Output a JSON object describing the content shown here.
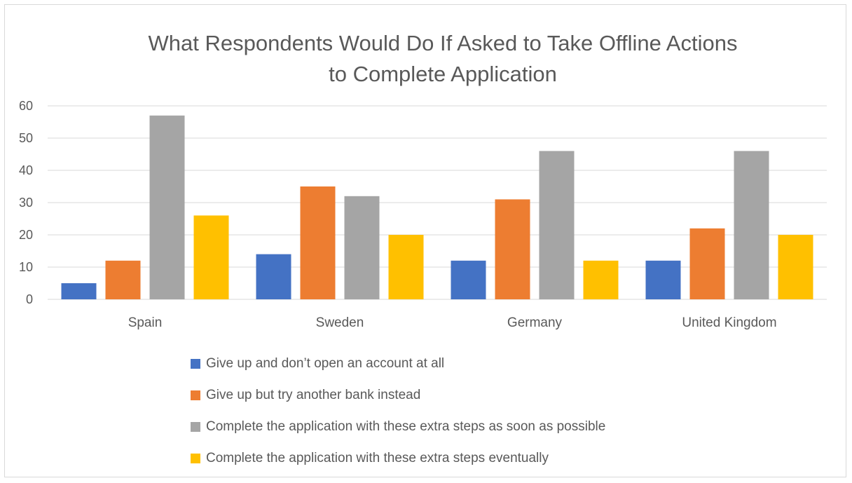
{
  "chart_data": {
    "type": "bar",
    "title_lines": [
      "What Respondents Would Do If Asked to Take Offline Actions",
      "to Complete Application"
    ],
    "categories": [
      "Spain",
      "Sweden",
      "Germany",
      "United Kingdom"
    ],
    "series": [
      {
        "name": "Give up and don’t open an account at all",
        "color": "#4472c4",
        "values": [
          5,
          14,
          12,
          12
        ]
      },
      {
        "name": "Give up but try another bank instead",
        "color": "#ed7d31",
        "values": [
          12,
          35,
          31,
          22
        ]
      },
      {
        "name": "Complete the application with these extra steps as soon as possible",
        "color": "#a5a5a5",
        "values": [
          57,
          32,
          46,
          46
        ]
      },
      {
        "name": "Complete the application with these extra steps eventually",
        "color": "#ffc000",
        "values": [
          26,
          20,
          12,
          20
        ]
      }
    ],
    "yticks": [
      "0",
      "10",
      "20",
      "30",
      "40",
      "50",
      "60"
    ],
    "ylim": [
      0,
      60
    ],
    "grid": true,
    "legend_position": "bottom"
  }
}
